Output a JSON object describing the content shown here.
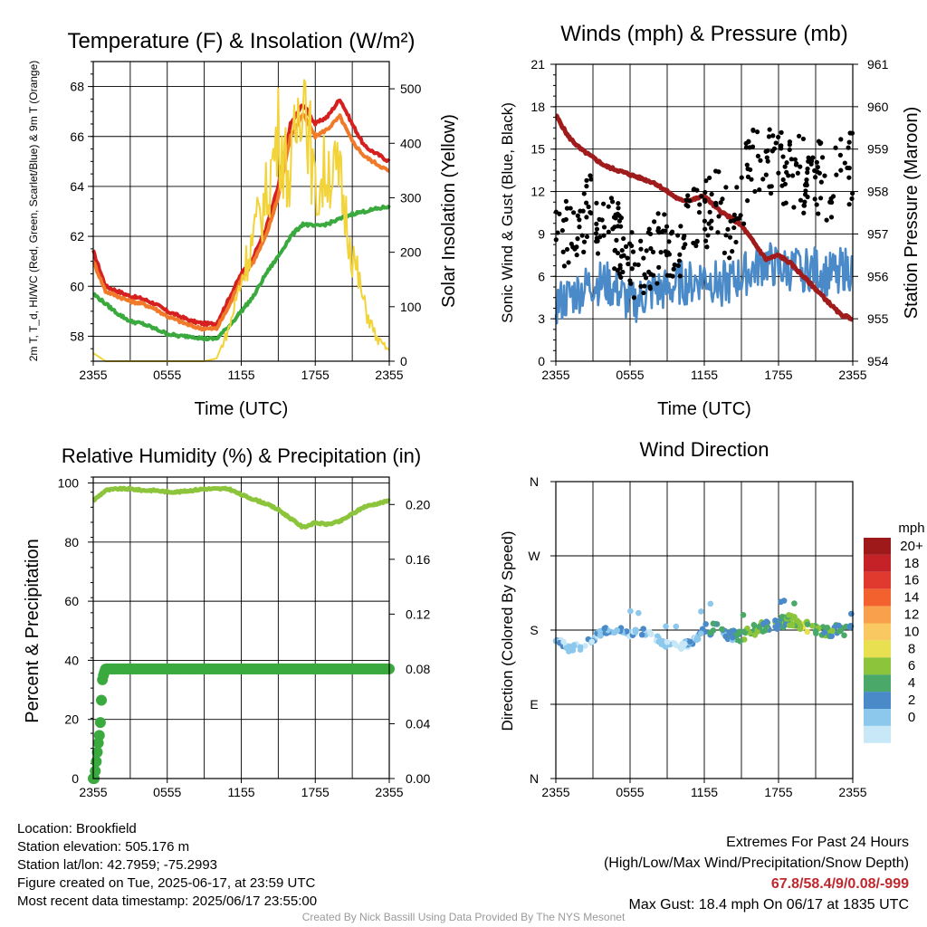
{
  "chart_data": [
    {
      "type": "line",
      "title": "Temperature (F) & Insolation (W/m²)",
      "xlabel": "Time (UTC)",
      "ylabel": "2m T, T_d, HI/WC (Red, Green, Scarlet/Blue) & 9m T (Orange)",
      "ylabel_right": "Solar Insolation (Yellow)",
      "x_ticks": [
        "2355",
        "0555",
        "1155",
        "1755",
        "2355"
      ],
      "ylim": [
        57,
        69
      ],
      "y_ticks": [
        58,
        60,
        62,
        64,
        66,
        68
      ],
      "ylim_right": [
        0,
        550
      ],
      "y_ticks_right": [
        0,
        100,
        200,
        300,
        400,
        500
      ],
      "grid": true,
      "x_hours": [
        0,
        1,
        2,
        3,
        4,
        5,
        6,
        7,
        8,
        9,
        10,
        11,
        12,
        13,
        14,
        15,
        16,
        17,
        18,
        19,
        20,
        21,
        22,
        23,
        24
      ],
      "series": [
        {
          "color": "#d62020",
          "axis": "left",
          "values": [
            61.4,
            60.0,
            59.8,
            59.6,
            59.5,
            59.3,
            59.0,
            58.8,
            58.6,
            58.5,
            58.5,
            59.5,
            60.5,
            61.2,
            62.3,
            64.0,
            66.5,
            67.3,
            66.5,
            66.8,
            67.5,
            66.5,
            65.6,
            65.3,
            65.0
          ]
        },
        {
          "color": "#f07a2a",
          "axis": "left",
          "values": [
            61.0,
            59.8,
            59.6,
            59.4,
            59.3,
            59.1,
            58.8,
            58.6,
            58.4,
            58.3,
            58.3,
            59.2,
            60.3,
            61.0,
            62.0,
            63.6,
            66.0,
            66.9,
            66.0,
            66.3,
            66.8,
            65.8,
            65.2,
            64.9,
            64.6
          ]
        },
        {
          "color": "#3aaa3e",
          "axis": "left",
          "values": [
            59.7,
            59.3,
            58.9,
            58.6,
            58.5,
            58.3,
            58.1,
            58.0,
            58.0,
            57.9,
            57.9,
            58.4,
            59.0,
            59.6,
            60.5,
            61.2,
            62.0,
            62.5,
            62.4,
            62.5,
            62.7,
            62.9,
            63.0,
            63.1,
            63.2
          ]
        },
        {
          "color": "#f2d43a",
          "axis": "right",
          "values": [
            15,
            0,
            0,
            0,
            0,
            0,
            0,
            0,
            0,
            0,
            5,
            60,
            150,
            230,
            300,
            420,
            330,
            540,
            300,
            360,
            330,
            200,
            100,
            40,
            20
          ]
        }
      ]
    },
    {
      "type": "line",
      "title": "Winds (mph) & Pressure (mb)",
      "xlabel": "Time (UTC)",
      "ylabel": "Sonic Wind & Gust (Blue, Black)",
      "ylabel_right": "Station Pressure (Maroon)",
      "x_ticks": [
        "2355",
        "0555",
        "1155",
        "1755",
        "2355"
      ],
      "ylim": [
        0,
        21
      ],
      "y_ticks": [
        0,
        3,
        6,
        9,
        12,
        15,
        18,
        21
      ],
      "ylim_right": [
        954,
        961
      ],
      "y_ticks_right": [
        954,
        955,
        956,
        957,
        958,
        959,
        960,
        961
      ],
      "grid": true,
      "x_hours": [
        0,
        1,
        2,
        3,
        4,
        5,
        6,
        7,
        8,
        9,
        10,
        11,
        12,
        13,
        14,
        15,
        16,
        17,
        18,
        19,
        20,
        21,
        22,
        23,
        24
      ],
      "series": [
        {
          "name": "Sonic Wind",
          "color": "#4a8ac8",
          "axis": "left",
          "values": [
            4.0,
            4.5,
            5.0,
            5.5,
            5.5,
            5.0,
            4.0,
            4.5,
            5.0,
            5.0,
            5.5,
            5.5,
            6.0,
            5.5,
            5.5,
            6.0,
            6.5,
            7.0,
            6.5,
            6.5,
            6.5,
            6.5,
            6.0,
            6.5,
            6.5
          ]
        },
        {
          "name": "Gust",
          "color": "#000000",
          "axis": "left",
          "values": [
            9.0,
            9.5,
            10.0,
            10.5,
            9.5,
            8.5,
            6.5,
            7.0,
            8.0,
            8.5,
            8.0,
            9.5,
            10.5,
            11.0,
            10.0,
            12.0,
            14.0,
            14.5,
            14.0,
            13.5,
            13.0,
            13.0,
            12.5,
            13.0,
            13.5
          ]
        },
        {
          "name": "Station Pressure",
          "color": "#a01c1c",
          "axis": "right",
          "values": [
            959.8,
            959.3,
            959.0,
            958.8,
            958.6,
            958.5,
            958.4,
            958.3,
            958.2,
            958.0,
            957.8,
            957.8,
            957.9,
            957.6,
            957.4,
            957.2,
            956.8,
            956.4,
            956.5,
            956.3,
            956.0,
            955.7,
            955.4,
            955.1,
            955.0
          ]
        }
      ]
    },
    {
      "type": "line",
      "title": "Relative Humidity (%) & Precipitation (in)",
      "xlabel": "",
      "ylabel": "Percent & Precipitation",
      "x_ticks": [
        "2355",
        "0555",
        "1155",
        "1755",
        "2355"
      ],
      "ylim": [
        0,
        100
      ],
      "y_ticks": [
        0,
        20,
        40,
        60,
        80,
        100
      ],
      "ylim_right": [
        0,
        0.22
      ],
      "y_ticks_right": [
        "0.00",
        "0.04",
        "0.08",
        "0.12",
        "0.16",
        "0.20"
      ],
      "grid": true,
      "x_hours": [
        0,
        1,
        2,
        3,
        4,
        5,
        6,
        7,
        8,
        9,
        10,
        11,
        12,
        13,
        14,
        15,
        16,
        17,
        18,
        19,
        20,
        21,
        22,
        23,
        24
      ],
      "series": [
        {
          "color": "#8cc43c",
          "axis": "left",
          "values": [
            94,
            97.5,
            98,
            98,
            97.5,
            97.5,
            97,
            97,
            97.5,
            98,
            98,
            98,
            96,
            94.5,
            93,
            91,
            88,
            85,
            86.5,
            86,
            87,
            89.5,
            92,
            93,
            94
          ]
        },
        {
          "color": "#3aaa3e",
          "axis": "right",
          "x_hours": [
            0,
            0.1,
            0.25,
            0.4,
            0.55,
            0.65,
            0.75,
            0.85,
            1.0,
            1.5,
            3,
            6,
            9,
            12,
            15,
            18,
            21,
            24
          ],
          "values": [
            0.0,
            0.0,
            0.0125,
            0.025,
            0.035,
            0.055,
            0.073,
            0.076,
            0.08,
            0.08,
            0.08,
            0.08,
            0.08,
            0.08,
            0.08,
            0.08,
            0.08,
            0.08
          ]
        }
      ]
    },
    {
      "type": "scatter",
      "title": "Wind Direction",
      "xlabel": "",
      "ylabel": "Direction (Colored By Speed)",
      "x_ticks": [
        "2355",
        "0555",
        "1155",
        "1755",
        "2355"
      ],
      "y_ticks": [
        "N",
        "E",
        "S",
        "W",
        "N"
      ],
      "grid": true,
      "x_hours": [
        0,
        1,
        2,
        3,
        4,
        5,
        6,
        7,
        8,
        9,
        10,
        11,
        12,
        13,
        14,
        15,
        16,
        17,
        18,
        19,
        20,
        21,
        22,
        23,
        24
      ],
      "direction_degrees": [
        170,
        158,
        160,
        170,
        180,
        180,
        175,
        178,
        172,
        162,
        160,
        165,
        180,
        182,
        175,
        172,
        180,
        185,
        188,
        192,
        184,
        182,
        178,
        180,
        178
      ],
      "speeds_mph": [
        4,
        3,
        2,
        3,
        4,
        4,
        3,
        3,
        2,
        2,
        2,
        3,
        4,
        6,
        5,
        6,
        8,
        7,
        6,
        8,
        9,
        8,
        7,
        6,
        6
      ],
      "legend": {
        "title": "mph",
        "labels": [
          "20+",
          "18",
          "16",
          "14",
          "12",
          "10",
          "8",
          "6",
          "4",
          "2",
          "0"
        ],
        "colors": [
          "#9e1a1a",
          "#c42226",
          "#e03a2e",
          "#f2612e",
          "#f8a04c",
          "#f9c860",
          "#e8e050",
          "#8cc43c",
          "#4aa868",
          "#4a8ac8",
          "#8cc8ec",
          "#c8e8f8"
        ]
      }
    }
  ],
  "info": {
    "location": "Location: Brookfield",
    "elevation": "Station elevation: 505.176 m",
    "latlon": "Station lat/lon: 42.7959; -75.2993",
    "created": "Figure created on Tue, 2025-06-17, at 23:59 UTC",
    "recent": "Most recent data timestamp: 2025/06/17 23:55:00"
  },
  "extremes": {
    "heading": "Extremes For Past 24 Hours",
    "legend": "(High/Low/Max Wind/Precipitation/Snow Depth)",
    "values": "67.8/58.4/9/0.08/-999",
    "gust": "Max Gust: 18.4 mph On 06/17 at 1835 UTC"
  },
  "credit": "Created By Nick Bassill Using Data Provided By The NYS Mesonet"
}
